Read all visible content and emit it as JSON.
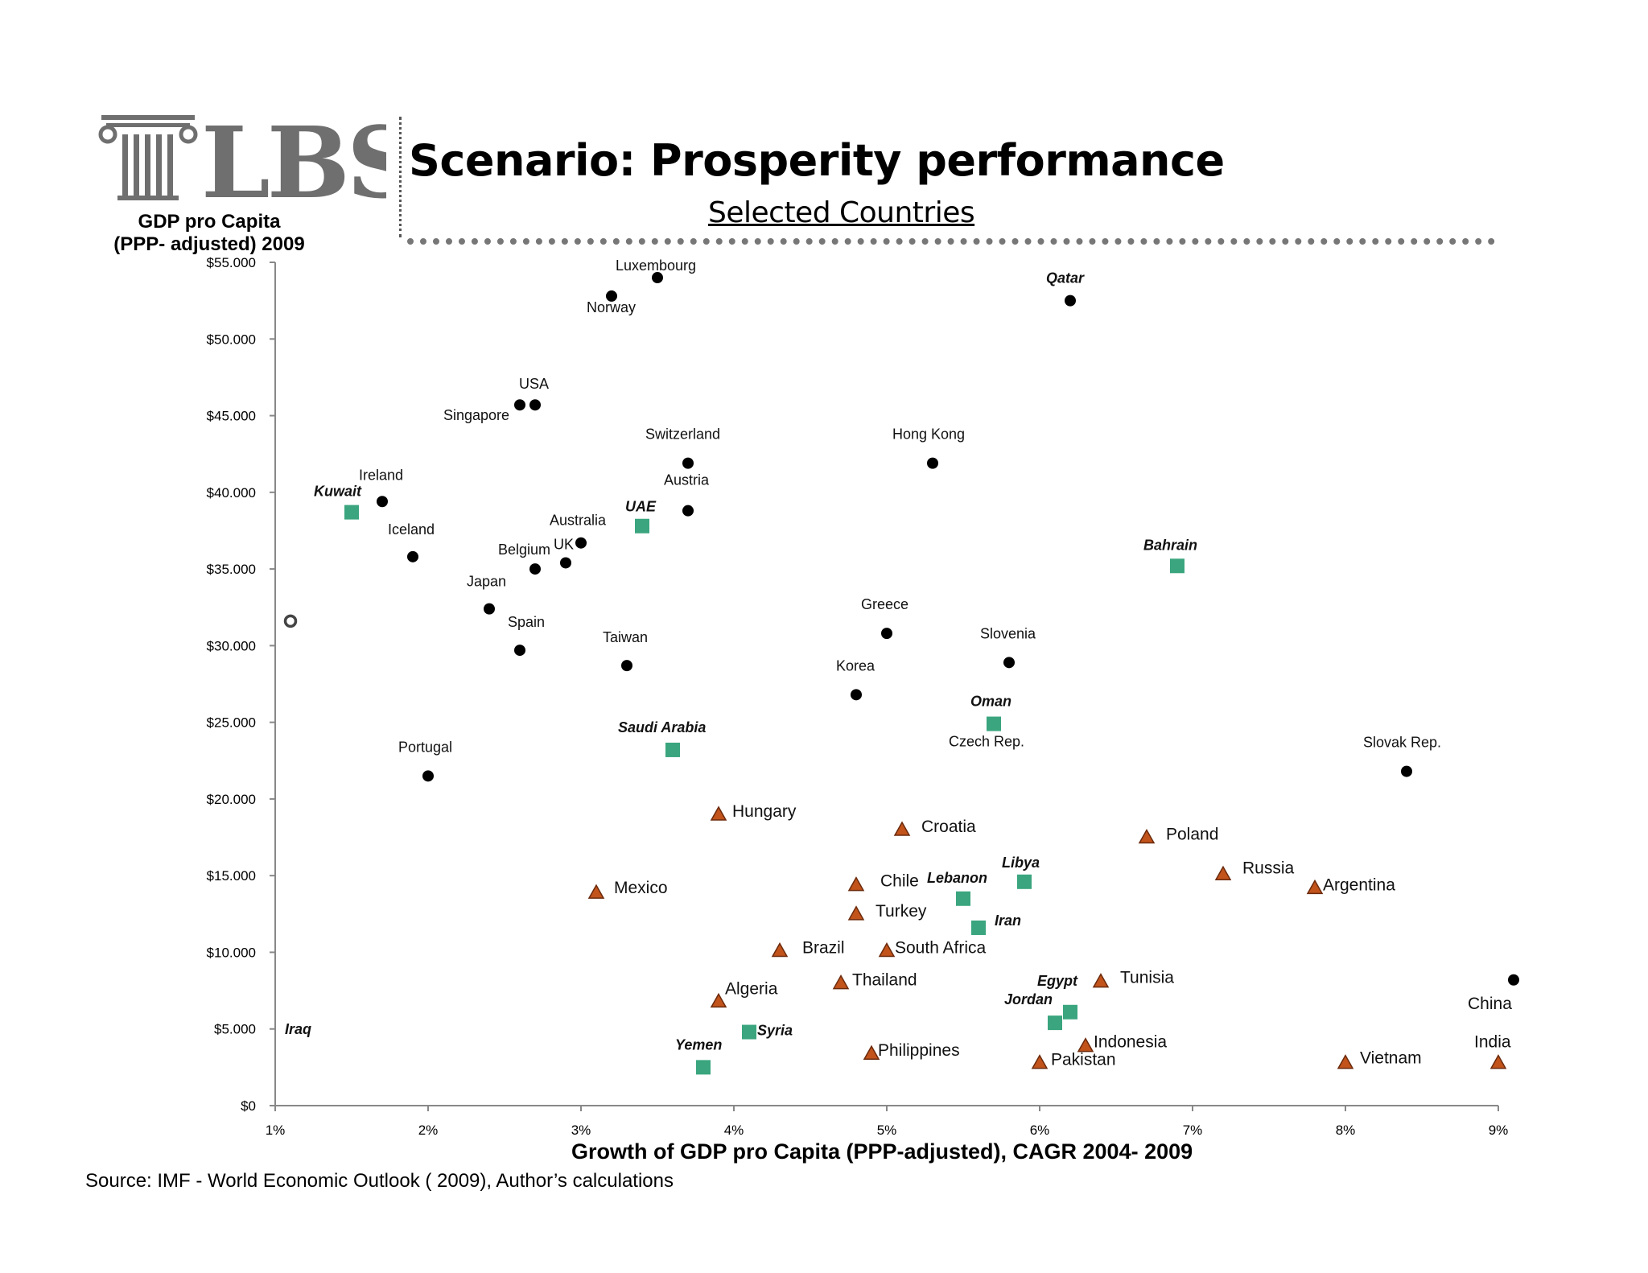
{
  "header": {
    "logo_text": "LBS",
    "title": "Scenario: Prosperity performance",
    "subtitle": "Selected Countries"
  },
  "footer": {
    "source": "Source: IMF -  World Economic Outlook ( 2009),  Author’s calculations"
  },
  "colors": {
    "advanced": "#000000",
    "arab": "#3aa57e",
    "emerging": "#c1531b",
    "emerging_edge": "#6b2a0c"
  },
  "chart_data": {
    "type": "scatter",
    "title": "Scenario: Prosperity performance",
    "subtitle": "Selected Countries",
    "ylabel_lines": [
      "GDP pro Capita",
      "(PPP- adjusted)  2009"
    ],
    "xlabel": "Growth of GDP pro Capita  (PPP-adjusted), CAGR 2004- 2009",
    "xlim": [
      1,
      9
    ],
    "ylim": [
      0,
      55000
    ],
    "x_ticks": [
      1,
      2,
      3,
      4,
      5,
      6,
      7,
      8,
      9
    ],
    "x_tick_labels": [
      "1%",
      "2%",
      "3%",
      "4%",
      "5%",
      "6%",
      "7%",
      "8%",
      "9%"
    ],
    "y_ticks": [
      0,
      5000,
      10000,
      15000,
      20000,
      25000,
      30000,
      35000,
      40000,
      45000,
      50000,
      55000
    ],
    "y_tick_labels": [
      "$0",
      "$5.000",
      "$10.000",
      "$15.000",
      "$20.000",
      "$25.000",
      "$30.000",
      "$35.000",
      "$40.000",
      "$45.000",
      "$50.000",
      "$55.000"
    ],
    "grid": false,
    "legend": "none",
    "series": [
      {
        "marker": "circle",
        "points": [
          {
            "label": "Luxembourg",
            "x": 3.5,
            "y": 54000
          },
          {
            "label": "Norway",
            "x": 3.2,
            "y": 52800
          },
          {
            "label": "Qatar",
            "x": 6.2,
            "y": 52500
          },
          {
            "label": "USA",
            "x": 2.7,
            "y": 45700
          },
          {
            "label": "Singapore",
            "x": 2.6,
            "y": 45700
          },
          {
            "label": "Switzerland",
            "x": 3.7,
            "y": 41900
          },
          {
            "label": "Hong Kong",
            "x": 5.3,
            "y": 41900
          },
          {
            "label": "Austria",
            "x": 3.7,
            "y": 38800
          },
          {
            "label": "Ireland",
            "x": 1.7,
            "y": 39400
          },
          {
            "label": "Australia",
            "x": 3.0,
            "y": 36700
          },
          {
            "label": "Iceland",
            "x": 1.9,
            "y": 35800
          },
          {
            "label": "UK",
            "x": 2.9,
            "y": 35400
          },
          {
            "label": "Belgium",
            "x": 2.7,
            "y": 35000
          },
          {
            "label": "Japan",
            "x": 2.4,
            "y": 32400
          },
          {
            "label": "Spain",
            "x": 2.6,
            "y": 29700
          },
          {
            "label": "Taiwan",
            "x": 3.3,
            "y": 28700
          },
          {
            "label": "Greece",
            "x": 5.0,
            "y": 30800
          },
          {
            "label": "Slovenia",
            "x": 5.8,
            "y": 28900
          },
          {
            "label": "Korea",
            "x": 4.8,
            "y": 26800
          },
          {
            "label": "Czech Rep.",
            "x": 5.7,
            "y": 24800
          },
          {
            "label": "Portugal",
            "x": 2.0,
            "y": 21500
          },
          {
            "label": "Slovak Rep.",
            "x": 8.4,
            "y": 21800
          },
          {
            "label": "China",
            "x": 9.1,
            "y": 8200
          }
        ]
      },
      {
        "marker": "square",
        "points": [
          {
            "label": "Kuwait",
            "x": 1.5,
            "y": 38700
          },
          {
            "label": "UAE",
            "x": 3.4,
            "y": 37800
          },
          {
            "label": "Bahrain",
            "x": 6.9,
            "y": 35200
          },
          {
            "label": "Oman",
            "x": 5.7,
            "y": 24900
          },
          {
            "label": "Saudi Arabia",
            "x": 3.6,
            "y": 23200
          },
          {
            "label": "Libya",
            "x": 5.9,
            "y": 14600
          },
          {
            "label": "Lebanon",
            "x": 5.5,
            "y": 13500
          },
          {
            "label": "Iran",
            "x": 5.6,
            "y": 11600
          },
          {
            "label": "Egypt",
            "x": 6.2,
            "y": 6100
          },
          {
            "label": "Jordan",
            "x": 6.1,
            "y": 5400
          },
          {
            "label": "Syria",
            "x": 4.1,
            "y": 4800
          },
          {
            "label": "Yemen",
            "x": 3.8,
            "y": 2500
          },
          {
            "label": "Iraq",
            "x": 1.1,
            "y": 31600
          }
        ]
      },
      {
        "marker": "triangle",
        "points": [
          {
            "label": "Hungary",
            "x": 3.9,
            "y": 19000
          },
          {
            "label": "Croatia",
            "x": 5.1,
            "y": 18000
          },
          {
            "label": "Poland",
            "x": 6.7,
            "y": 17500
          },
          {
            "label": "Russia",
            "x": 7.2,
            "y": 15100
          },
          {
            "label": "Argentina",
            "x": 7.8,
            "y": 14200
          },
          {
            "label": "Mexico",
            "x": 3.1,
            "y": 13900
          },
          {
            "label": "Chile",
            "x": 4.8,
            "y": 14400
          },
          {
            "label": "Turkey",
            "x": 4.8,
            "y": 12500
          },
          {
            "label": "Brazil",
            "x": 4.3,
            "y": 10100
          },
          {
            "label": "South Africa",
            "x": 5.0,
            "y": 10100
          },
          {
            "label": "Thailand",
            "x": 4.7,
            "y": 8000
          },
          {
            "label": "Tunisia",
            "x": 6.4,
            "y": 8100
          },
          {
            "label": "Algeria",
            "x": 3.9,
            "y": 6800
          },
          {
            "label": "Indonesia",
            "x": 6.3,
            "y": 3900
          },
          {
            "label": "Philippines",
            "x": 4.9,
            "y": 3400
          },
          {
            "label": "Pakistan",
            "x": 6.0,
            "y": 2800
          },
          {
            "label": "Vietnam",
            "x": 8.0,
            "y": 2800
          },
          {
            "label": "India",
            "x": 9.0,
            "y": 2800
          }
        ]
      }
    ]
  }
}
